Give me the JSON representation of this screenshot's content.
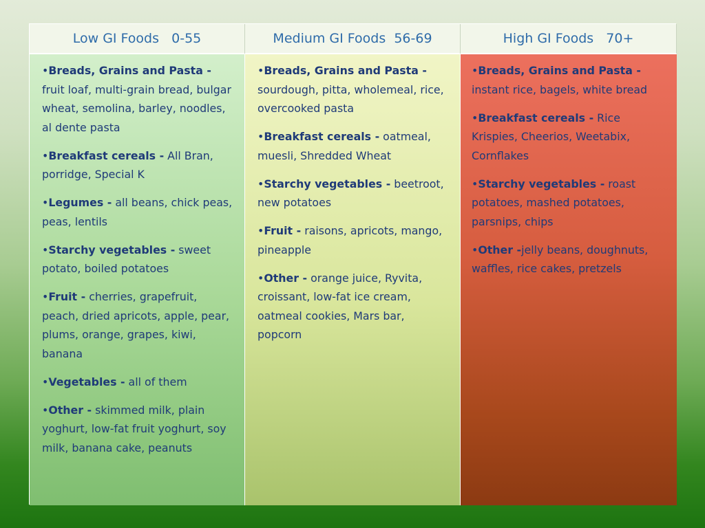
{
  "columns": [
    {
      "header": "Low GI Foods   0-55",
      "items": [
        {
          "label": "Breads, Grains and Pasta -",
          "text": " fruit loaf, multi-grain bread, bulgar wheat, semolina, barley, noodles, al dente pasta"
        },
        {
          "label": "Breakfast cereals -",
          "text": "  All Bran, porridge, Special K"
        },
        {
          "label": "Legumes -",
          "text": " all beans, chick peas, peas, lentils"
        },
        {
          "label": "Starchy vegetables -",
          "text": " sweet potato, boiled potatoes"
        },
        {
          "label": "Fruit -",
          "text": " cherries, grapefruit, peach, dried apricots, apple, pear, plums, orange, grapes, kiwi, banana"
        },
        {
          "label": "Vegetables -",
          "text": " all of them"
        },
        {
          "label": "Other -",
          "text": " skimmed milk, plain yoghurt, low-fat fruit yoghurt, soy milk, banana cake, peanuts"
        }
      ]
    },
    {
      "header": "Medium GI Foods  56-69",
      "items": [
        {
          "label": "Breads, Grains and Pasta -",
          "text": " sourdough, pitta, wholemeal, rice, overcooked pasta"
        },
        {
          "label": "Breakfast cereals -",
          "text": " oatmeal, muesli, Shredded Wheat"
        },
        {
          "label": "Starchy vegetables -",
          "text": " beetroot, new potatoes"
        },
        {
          "label": "Fruit -",
          "text": " raisons, apricots, mango, pineapple"
        },
        {
          "label": "Other -",
          "text": " orange juice, Ryvita, croissant, low-fat ice cream, oatmeal cookies, Mars bar, popcorn"
        }
      ]
    },
    {
      "header": "High GI Foods   70+",
      "items": [
        {
          "label": "Breads, Grains and Pasta -",
          "text": " instant rice, bagels, white bread"
        },
        {
          "label": "Breakfast cereals -",
          "text": " Rice Krispies, Cheerios, Weetabix, Cornflakes"
        },
        {
          "label": "Starchy vegetables -",
          "text": " roast potatoes, mashed potatoes, parsnips, chips"
        },
        {
          "label": "Other -",
          "text": "jelly beans, doughnuts, waffles, rice cakes, pretzels"
        }
      ]
    }
  ]
}
